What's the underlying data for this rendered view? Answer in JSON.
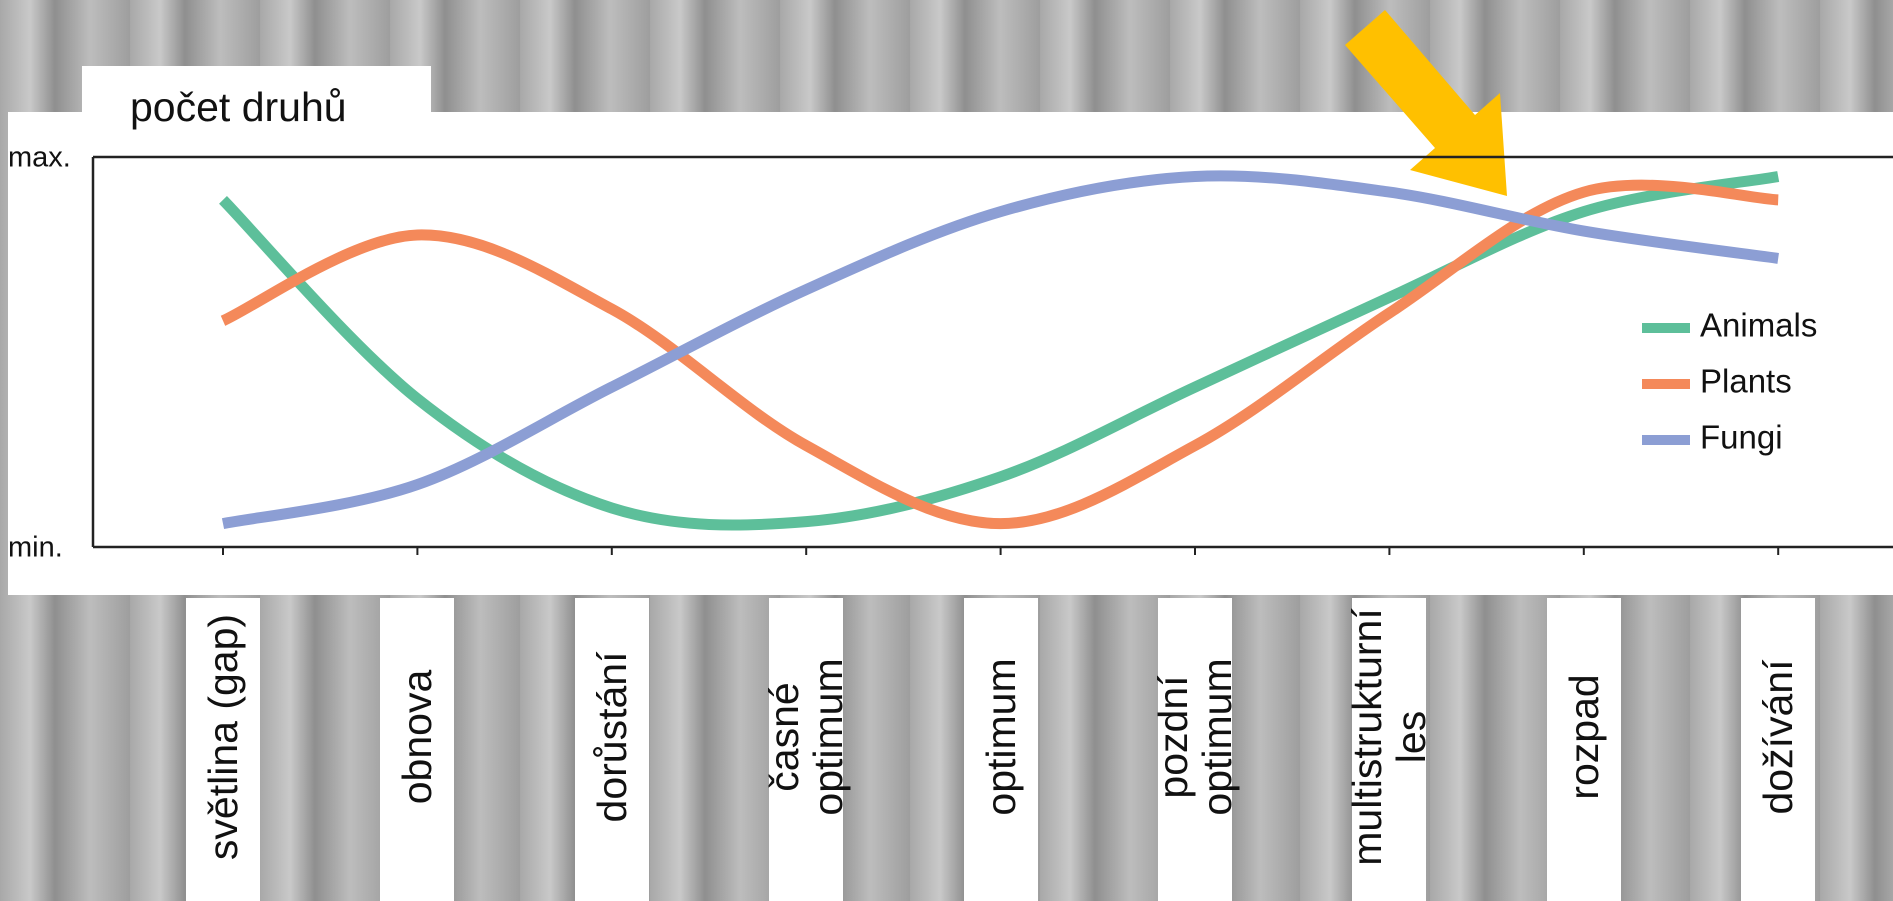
{
  "chart_data": {
    "type": "line",
    "title": "počet druhů",
    "categories": [
      "světlina (gap)",
      "obnova",
      "dorůstání",
      "časné\noptimum",
      "optimum",
      "pozdní\noptimum",
      "multistrukturní\nles",
      "rozpad",
      "dožívání"
    ],
    "series": [
      {
        "name": "Animals",
        "color": "#5dbf9a",
        "values": [
          89,
          38,
          10,
          6.5,
          18,
          41,
          64,
          86,
          95
        ]
      },
      {
        "name": "Plants",
        "color": "#f4895a",
        "values": [
          58,
          80,
          61,
          26,
          6,
          26,
          60,
          91,
          89
        ]
      },
      {
        "name": "Fungi",
        "color": "#8c9ed4",
        "values": [
          6,
          16,
          41,
          66,
          86,
          95,
          91,
          81,
          74
        ]
      }
    ],
    "ylim": [
      0,
      100
    ],
    "yticks": [
      {
        "value": 0,
        "label": "min."
      },
      {
        "value": 100,
        "label": "max."
      }
    ]
  }
}
